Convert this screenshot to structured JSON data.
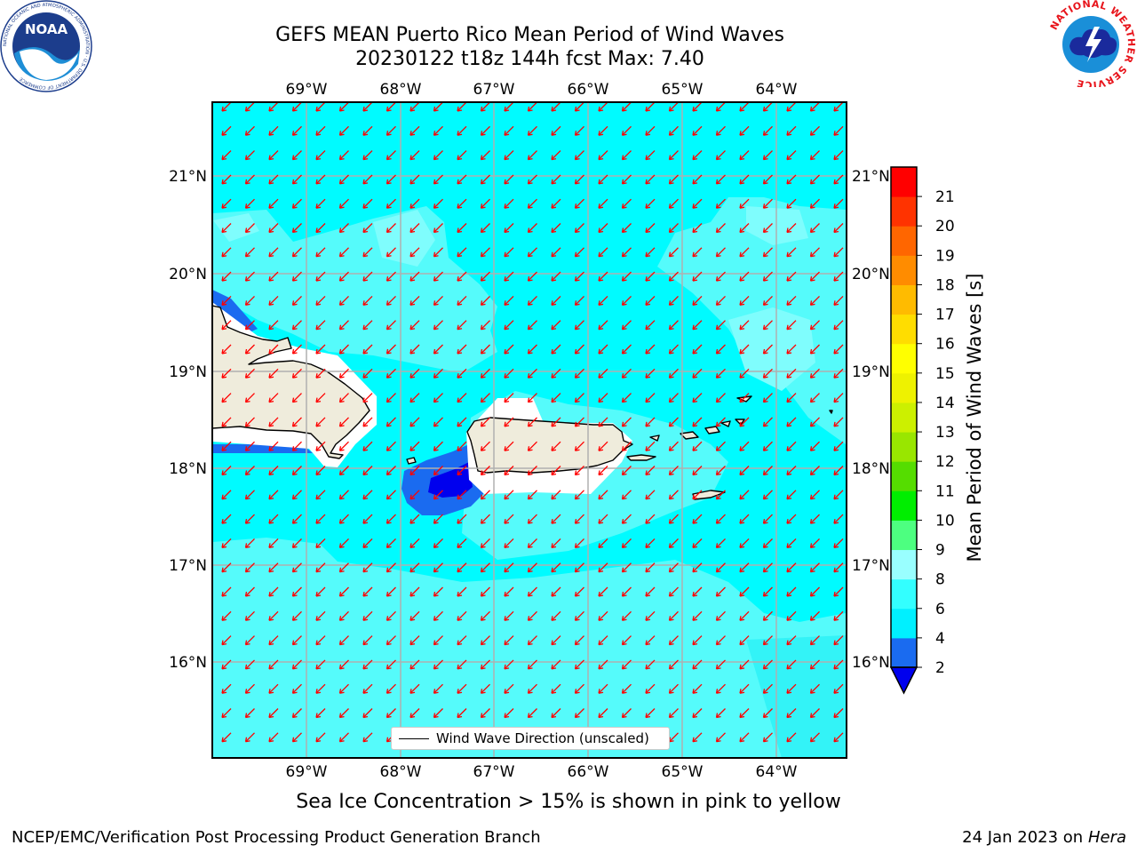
{
  "title": {
    "line1": "GEFS MEAN Puerto Rico Mean Period of Wind Waves",
    "line2": "20230122 t18z 144h fcst   Max: 7.40"
  },
  "subtitle": "Sea Ice Concentration > 15% is shown in pink to yellow",
  "footer": {
    "left": "NCEP/EMC/Verification Post Processing Product Generation Branch",
    "date": "24 Jan 2023 on ",
    "host": "Hera"
  },
  "logos": {
    "noaa": {
      "text": "NOAA",
      "ring_text": "NATIONAL OCEANIC AND ATMOSPHERIC ADMINISTRATION · U.S. DEPARTMENT OF COMMERCE"
    },
    "nws": {
      "ring_text": "NATIONAL WEATHER SERVICE"
    }
  },
  "map": {
    "lon_labels": [
      "69°W",
      "68°W",
      "67°W",
      "66°W",
      "65°W",
      "64°W"
    ],
    "lat_labels": [
      "21°N",
      "20°N",
      "19°N",
      "18°N",
      "17°N",
      "16°N"
    ],
    "lon_range": [
      -70.0,
      -63.25
    ],
    "lat_range": [
      15.0,
      21.75
    ],
    "grid": true,
    "arrow_color": "#ff0000",
    "arrow_direction": "toward southwest",
    "land_color": "#efecdc",
    "coast_color": "#000000"
  },
  "legend": {
    "label": "Wind Wave Direction (unscaled)"
  },
  "colorbar": {
    "label": "Mean Period of Wind Waves [s]",
    "ticks": [
      "2",
      "4",
      "6",
      "8",
      "9",
      "10",
      "11",
      "12",
      "13",
      "14",
      "15",
      "16",
      "17",
      "18",
      "19",
      "20",
      "21"
    ],
    "colors": [
      "#1a6bf0",
      "#00f0ff",
      "#33ffff",
      "#99ffff",
      "#4dff80",
      "#00ee00",
      "#55dd00",
      "#99e600",
      "#ccf000",
      "#eef200",
      "#ffff00",
      "#ffdd00",
      "#ffbb00",
      "#ff8c00",
      "#ff6600",
      "#ff3300",
      "#ff0000"
    ],
    "extend_color": "#0000ee"
  },
  "chart_data": {
    "type": "heatmap",
    "title": "GEFS MEAN Puerto Rico Mean Period of Wind Waves",
    "variable": "Mean Period of Wind Waves [s]",
    "forecast": "20230122 t18z 144h fcst",
    "max": 7.4,
    "background_band": "4-6",
    "regions": [
      {
        "range": "6-8",
        "areas": [
          "north of Hispaniola",
          "Anegada Passage",
          "central Caribbean south of 17.2N",
          "east of Puerto Rico"
        ]
      },
      {
        "range": "2-4",
        "areas": [
          "Mona Passage south",
          "north coast of Hispaniola"
        ]
      },
      {
        "range": "<2",
        "areas": [
          "southwest of Puerto Rico near 17.8N 67.5W"
        ]
      }
    ]
  }
}
